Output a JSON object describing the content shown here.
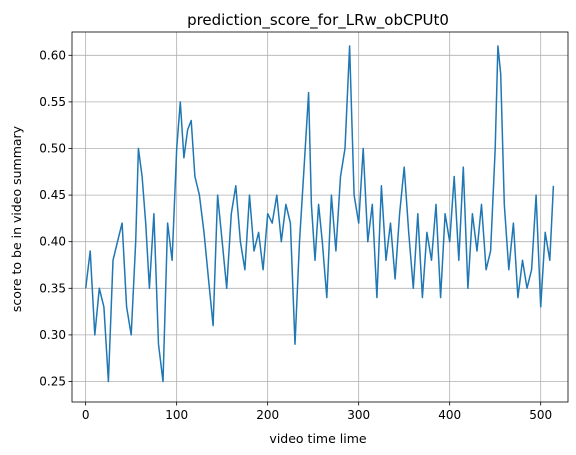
{
  "chart_data": {
    "type": "line",
    "title": "prediction_score_for_LRw_obCPUt0",
    "xlabel": "video time lime",
    "ylabel": "score to be in video summary",
    "xlim": [
      -15,
      530
    ],
    "ylim": [
      0.228,
      0.625
    ],
    "xticks": [
      0,
      100,
      200,
      300,
      400,
      500
    ],
    "yticks": [
      0.25,
      0.3,
      0.35,
      0.4,
      0.45,
      0.5,
      0.55,
      0.6
    ],
    "ytick_labels": [
      "0.25",
      "0.30",
      "0.35",
      "0.40",
      "0.45",
      "0.50",
      "0.55",
      "0.60"
    ],
    "grid": true,
    "line_color": "#1f77b4",
    "series": [
      {
        "x": [
          0,
          5,
          10,
          15,
          20,
          25,
          30,
          35,
          40,
          45,
          50,
          55,
          58,
          62,
          66,
          70,
          75,
          80,
          85,
          90,
          95,
          100,
          104,
          108,
          112,
          116,
          120,
          125,
          130,
          135,
          140,
          145,
          150,
          155,
          160,
          165,
          170,
          175,
          180,
          185,
          190,
          195,
          200,
          205,
          210,
          215,
          220,
          225,
          230,
          235,
          240,
          245,
          248,
          252,
          256,
          260,
          265,
          270,
          275,
          280,
          285,
          290,
          295,
          300,
          305,
          310,
          315,
          320,
          325,
          330,
          335,
          340,
          345,
          350,
          355,
          360,
          365,
          370,
          375,
          380,
          385,
          390,
          395,
          400,
          405,
          410,
          415,
          420,
          425,
          430,
          435,
          440,
          445,
          450,
          453,
          456,
          460,
          465,
          470,
          475,
          480,
          485,
          490,
          495,
          500,
          505,
          510,
          514
        ],
        "y": [
          0.35,
          0.39,
          0.3,
          0.35,
          0.33,
          0.25,
          0.38,
          0.4,
          0.42,
          0.33,
          0.3,
          0.4,
          0.5,
          0.47,
          0.42,
          0.35,
          0.43,
          0.29,
          0.25,
          0.42,
          0.38,
          0.5,
          0.55,
          0.49,
          0.52,
          0.53,
          0.47,
          0.45,
          0.41,
          0.36,
          0.31,
          0.45,
          0.4,
          0.35,
          0.43,
          0.46,
          0.4,
          0.37,
          0.45,
          0.39,
          0.41,
          0.37,
          0.43,
          0.42,
          0.45,
          0.4,
          0.44,
          0.42,
          0.29,
          0.4,
          0.48,
          0.56,
          0.44,
          0.38,
          0.44,
          0.4,
          0.34,
          0.45,
          0.39,
          0.47,
          0.5,
          0.61,
          0.45,
          0.42,
          0.5,
          0.4,
          0.44,
          0.34,
          0.46,
          0.38,
          0.42,
          0.36,
          0.43,
          0.48,
          0.41,
          0.35,
          0.43,
          0.34,
          0.41,
          0.38,
          0.44,
          0.34,
          0.43,
          0.4,
          0.47,
          0.38,
          0.48,
          0.35,
          0.43,
          0.39,
          0.44,
          0.37,
          0.39,
          0.5,
          0.61,
          0.58,
          0.44,
          0.37,
          0.42,
          0.34,
          0.38,
          0.35,
          0.37,
          0.45,
          0.33,
          0.41,
          0.38,
          0.46
        ]
      }
    ]
  }
}
